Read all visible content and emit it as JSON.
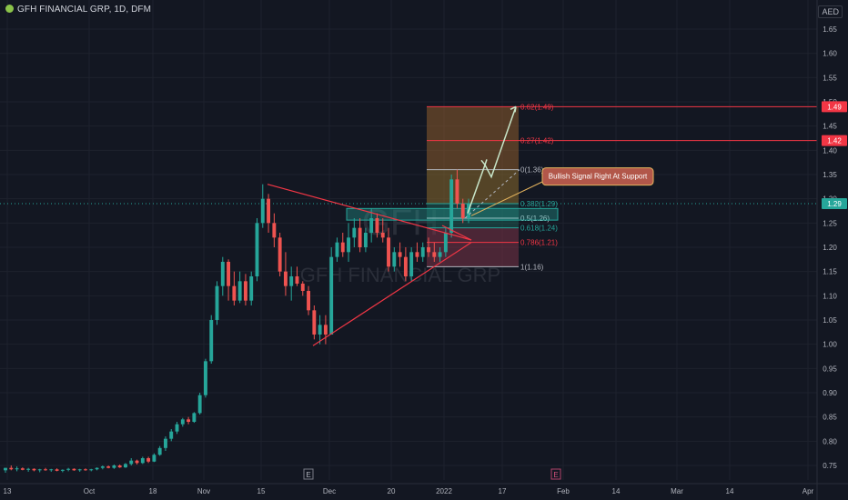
{
  "header": {
    "symbol_line": "GFH FINANCIAL GRP, 1D, DFM",
    "currency": "AED",
    "watermark_symbol": "GFH",
    "watermark_name": "GFH FINANCIAL GRP"
  },
  "colors": {
    "background": "#131722",
    "up": "#26a69a",
    "down": "#ef5350",
    "grid": "#1e222d",
    "pattern_line": "#f23645",
    "annotation_bg": "#b2574a",
    "annotation_border": "#e5b45e",
    "arrow": "#c8e6c9",
    "price_tag": "#f23645",
    "fib_zone_top": "#8d5b2c",
    "fib_zone_bottom": "#7a3347"
  },
  "chart_data": {
    "type": "candlestick",
    "y_axis": {
      "min": 0.72,
      "max": 1.71,
      "ticks": [
        "1.65",
        "1.60",
        "1.55",
        "1.50",
        "1.45",
        "1.40",
        "1.35",
        "1.30",
        "1.25",
        "1.20",
        "1.15",
        "1.10",
        "1.05",
        "1.00",
        "0.95",
        "0.90",
        "0.85",
        "0.80",
        "0.75"
      ]
    },
    "x_axis": {
      "ticks": [
        "13",
        "Oct",
        "18",
        "Nov",
        "15",
        "Dec",
        "20",
        "2022",
        "17",
        "Feb",
        "14",
        "Mar",
        "14",
        "Apr"
      ]
    },
    "event_markers": [
      "E",
      "E"
    ],
    "candles": [
      [
        0.74,
        0.745,
        0.735,
        0.745
      ],
      [
        0.745,
        0.75,
        0.74,
        0.742
      ],
      [
        0.742,
        0.748,
        0.738,
        0.744
      ],
      [
        0.744,
        0.746,
        0.74,
        0.741
      ],
      [
        0.741,
        0.745,
        0.737,
        0.743
      ],
      [
        0.743,
        0.744,
        0.738,
        0.74
      ],
      [
        0.74,
        0.743,
        0.736,
        0.742
      ],
      [
        0.742,
        0.745,
        0.739,
        0.741
      ],
      [
        0.741,
        0.743,
        0.737,
        0.742
      ],
      [
        0.742,
        0.744,
        0.738,
        0.739
      ],
      [
        0.739,
        0.742,
        0.736,
        0.741
      ],
      [
        0.741,
        0.745,
        0.738,
        0.743
      ],
      [
        0.743,
        0.744,
        0.739,
        0.74
      ],
      [
        0.74,
        0.743,
        0.737,
        0.742
      ],
      [
        0.742,
        0.744,
        0.739,
        0.741
      ],
      [
        0.741,
        0.743,
        0.738,
        0.742
      ],
      [
        0.742,
        0.746,
        0.74,
        0.745
      ],
      [
        0.745,
        0.75,
        0.742,
        0.748
      ],
      [
        0.748,
        0.75,
        0.744,
        0.745
      ],
      [
        0.745,
        0.752,
        0.743,
        0.75
      ],
      [
        0.75,
        0.752,
        0.745,
        0.746
      ],
      [
        0.746,
        0.755,
        0.745,
        0.753
      ],
      [
        0.753,
        0.765,
        0.75,
        0.76
      ],
      [
        0.76,
        0.762,
        0.752,
        0.755
      ],
      [
        0.755,
        0.768,
        0.753,
        0.765
      ],
      [
        0.765,
        0.768,
        0.755,
        0.758
      ],
      [
        0.758,
        0.775,
        0.757,
        0.772
      ],
      [
        0.772,
        0.79,
        0.77,
        0.786
      ],
      [
        0.786,
        0.81,
        0.78,
        0.805
      ],
      [
        0.805,
        0.825,
        0.8,
        0.82
      ],
      [
        0.82,
        0.84,
        0.815,
        0.835
      ],
      [
        0.835,
        0.848,
        0.83,
        0.845
      ],
      [
        0.845,
        0.85,
        0.835,
        0.84
      ],
      [
        0.84,
        0.86,
        0.838,
        0.858
      ],
      [
        0.858,
        0.9,
        0.855,
        0.895
      ],
      [
        0.895,
        0.97,
        0.89,
        0.965
      ],
      [
        0.965,
        1.06,
        0.96,
        1.05
      ],
      [
        1.05,
        1.13,
        1.04,
        1.12
      ],
      [
        1.12,
        1.18,
        1.1,
        1.17
      ],
      [
        1.17,
        1.175,
        1.09,
        1.12
      ],
      [
        1.12,
        1.15,
        1.08,
        1.09
      ],
      [
        1.09,
        1.15,
        1.085,
        1.13
      ],
      [
        1.13,
        1.145,
        1.08,
        1.09
      ],
      [
        1.09,
        1.15,
        1.08,
        1.14
      ],
      [
        1.14,
        1.26,
        1.13,
        1.25
      ],
      [
        1.25,
        1.33,
        1.24,
        1.3
      ],
      [
        1.3,
        1.31,
        1.23,
        1.25
      ],
      [
        1.25,
        1.27,
        1.2,
        1.22
      ],
      [
        1.22,
        1.23,
        1.14,
        1.15
      ],
      [
        1.15,
        1.19,
        1.1,
        1.12
      ],
      [
        1.12,
        1.16,
        1.09,
        1.14
      ],
      [
        1.14,
        1.16,
        1.12,
        1.125
      ],
      [
        1.125,
        1.13,
        1.1,
        1.11
      ],
      [
        1.11,
        1.12,
        1.06,
        1.07
      ],
      [
        1.07,
        1.08,
        1.01,
        1.02
      ],
      [
        1.02,
        1.06,
        1.0,
        1.04
      ],
      [
        1.04,
        1.06,
        1.0,
        1.02
      ],
      [
        1.02,
        1.2,
        1.02,
        1.18
      ],
      [
        1.18,
        1.22,
        1.17,
        1.21
      ],
      [
        1.21,
        1.23,
        1.18,
        1.19
      ],
      [
        1.19,
        1.25,
        1.17,
        1.22
      ],
      [
        1.22,
        1.26,
        1.2,
        1.24
      ],
      [
        1.24,
        1.26,
        1.19,
        1.2
      ],
      [
        1.2,
        1.24,
        1.19,
        1.23
      ],
      [
        1.23,
        1.28,
        1.21,
        1.26
      ],
      [
        1.26,
        1.27,
        1.22,
        1.23
      ],
      [
        1.23,
        1.26,
        1.21,
        1.22
      ],
      [
        1.22,
        1.24,
        1.15,
        1.16
      ],
      [
        1.16,
        1.2,
        1.15,
        1.19
      ],
      [
        1.19,
        1.21,
        1.16,
        1.18
      ],
      [
        1.18,
        1.2,
        1.13,
        1.14
      ],
      [
        1.14,
        1.2,
        1.13,
        1.19
      ],
      [
        1.19,
        1.21,
        1.17,
        1.18
      ],
      [
        1.18,
        1.21,
        1.17,
        1.2
      ],
      [
        1.2,
        1.22,
        1.18,
        1.19
      ],
      [
        1.19,
        1.21,
        1.17,
        1.18
      ],
      [
        1.18,
        1.2,
        1.17,
        1.19
      ],
      [
        1.19,
        1.24,
        1.18,
        1.23
      ],
      [
        1.23,
        1.35,
        1.22,
        1.34
      ],
      [
        1.34,
        1.36,
        1.28,
        1.29
      ],
      [
        1.29,
        1.3,
        1.25,
        1.26
      ],
      [
        1.26,
        1.3,
        1.25,
        1.29
      ]
    ],
    "fib_levels": [
      {
        "label": "0.62(1.49)",
        "price": 1.49,
        "color": "#f23645"
      },
      {
        "label": "0.27(1.42)",
        "price": 1.42,
        "color": "#f23645"
      },
      {
        "label": "0(1.36)",
        "price": 1.36,
        "color": "#b2b5be"
      },
      {
        "label": "0.382(1.29)",
        "price": 1.29,
        "color": "#26a69a"
      },
      {
        "label": "0.5(1.26)",
        "price": 1.26,
        "color": "#d1d4dc"
      },
      {
        "label": "0.618(1.24)",
        "price": 1.24,
        "color": "#26a69a"
      },
      {
        "label": "0.786(1.21)",
        "price": 1.21,
        "color": "#f23645"
      },
      {
        "label": "1(1.16)",
        "price": 1.16,
        "color": "#b2b5be"
      }
    ],
    "support_zone": {
      "top": 1.28,
      "bottom": 1.256
    },
    "price_tags": [
      {
        "label": "1.49",
        "price": 1.49,
        "color": "#f23645"
      },
      {
        "label": "1.42",
        "price": 1.42,
        "color": "#f23645"
      },
      {
        "label": "1.29",
        "price": 1.29,
        "color": "#26a69a"
      }
    ],
    "annotation": "Bullish Signal Right At Support"
  }
}
